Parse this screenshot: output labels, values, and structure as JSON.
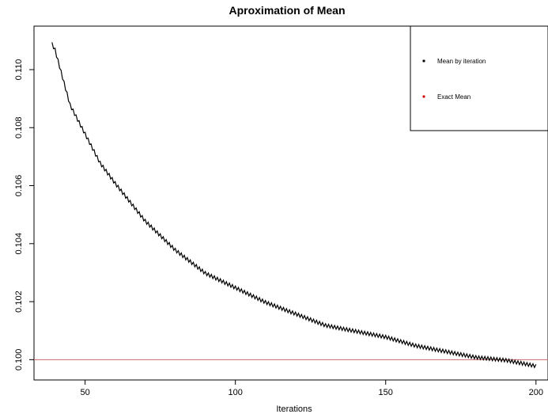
{
  "chart_data": {
    "type": "line",
    "title": "Aproximation of Mean",
    "xlabel": "Iterations",
    "ylabel": "",
    "xlim": [
      33,
      204
    ],
    "ylim": [
      0.0993,
      0.1115
    ],
    "x_ticks": [
      50,
      100,
      150,
      200
    ],
    "y_ticks": [
      0.1,
      0.102,
      0.104,
      0.106,
      0.108,
      0.11
    ],
    "y_tick_labels": [
      "0.100",
      "0.102",
      "0.104",
      "0.106",
      "0.108",
      "0.110"
    ],
    "x_tick_labels": [
      "50",
      "100",
      "150",
      "200"
    ],
    "grid": false,
    "legend_position": "top-right",
    "legend": [
      {
        "label": "Mean by iteration",
        "color": "#000000"
      },
      {
        "label": "Exact Mean",
        "color": "#cc0000"
      }
    ],
    "series": [
      {
        "color": "#000000",
        "x_start": 39,
        "x_end": 200,
        "trend_points": [
          [
            39,
            0.1109
          ],
          [
            40,
            0.1107
          ],
          [
            45,
            0.1088
          ],
          [
            50,
            0.1078
          ],
          [
            55,
            0.1068
          ],
          [
            60,
            0.1061
          ],
          [
            70,
            0.1048
          ],
          [
            80,
            0.1038
          ],
          [
            90,
            0.103
          ],
          [
            100,
            0.1025
          ],
          [
            110,
            0.102
          ],
          [
            120,
            0.1016
          ],
          [
            130,
            0.1012
          ],
          [
            140,
            0.101
          ],
          [
            150,
            0.1008
          ],
          [
            160,
            0.1005
          ],
          [
            170,
            0.1003
          ],
          [
            180,
            0.1001
          ],
          [
            190,
            0.1
          ],
          [
            200,
            0.0998
          ]
        ],
        "zigzag_amplitude": 8e-05
      }
    ],
    "reference_line": {
      "y": 0.1,
      "color": "#cc6666"
    }
  }
}
